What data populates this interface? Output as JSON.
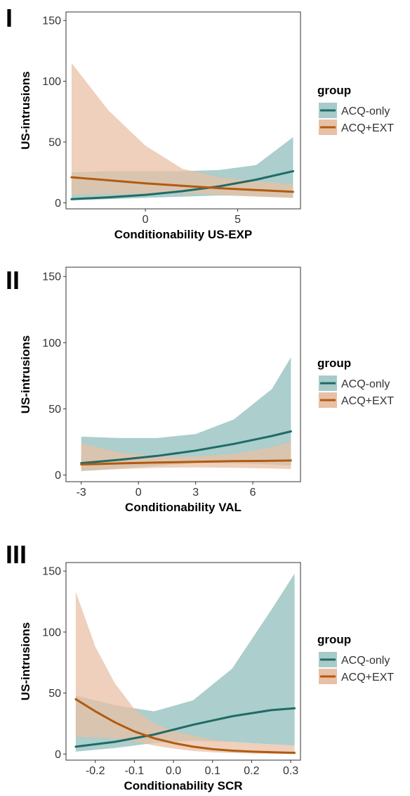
{
  "colors": {
    "acq_only": "#1f6b66",
    "acq_only_band": "#a8cbc9",
    "acq_ext": "#b35a0f",
    "acq_ext_band": "#e8c0a6",
    "text": "#333333",
    "axis": "#333333"
  },
  "chart_data": [
    {
      "panel_label": "I",
      "type": "line",
      "xlabel": "Conditionability US-EXP",
      "ylabel": "US-intrusions",
      "xlim": [
        -4.3,
        8.4
      ],
      "ylim": [
        -5,
        157
      ],
      "xticks": [
        0,
        5
      ],
      "xtick_labels": [
        "0",
        "5"
      ],
      "yticks": [
        0,
        50,
        100,
        150
      ],
      "ytick_labels": [
        "0",
        "50",
        "100",
        "150"
      ],
      "grid": false,
      "legend": {
        "title": "group",
        "placement": "right",
        "entries": [
          "ACQ-only",
          "ACQ+EXT"
        ]
      },
      "series": [
        {
          "name": "ACQ-only",
          "x": [
            -4,
            -2,
            0,
            2,
            4,
            6,
            8
          ],
          "y": [
            3,
            4.5,
            6.5,
            9.5,
            13.5,
            19,
            26
          ],
          "lower": [
            2,
            3,
            4,
            5,
            6,
            5.5,
            4
          ],
          "upper": [
            25,
            26,
            26,
            26,
            27,
            31,
            54
          ]
        },
        {
          "name": "ACQ+EXT",
          "x": [
            -4,
            -2,
            0,
            2,
            4,
            6,
            8
          ],
          "y": [
            21,
            18.5,
            16,
            14,
            12,
            10.5,
            9
          ],
          "lower": [
            6.5,
            7,
            7.5,
            8,
            6.5,
            5,
            4
          ],
          "upper": [
            115,
            76,
            47,
            28,
            21,
            18,
            15
          ]
        }
      ]
    },
    {
      "panel_label": "II",
      "type": "line",
      "xlabel": "Conditionability VAL",
      "ylabel": "US-intrusions",
      "xlim": [
        -3.8,
        8.5
      ],
      "ylim": [
        -5,
        157
      ],
      "xticks": [
        -3,
        0,
        3,
        6
      ],
      "xtick_labels": [
        "-3",
        "0",
        "3",
        "6"
      ],
      "yticks": [
        0,
        50,
        100,
        150
      ],
      "ytick_labels": [
        "0",
        "50",
        "100",
        "150"
      ],
      "grid": false,
      "legend": {
        "title": "group",
        "placement": "right",
        "entries": [
          "ACQ-only",
          "ACQ+EXT"
        ]
      },
      "series": [
        {
          "name": "ACQ-only",
          "x": [
            -3,
            -1,
            1,
            3,
            5,
            7,
            8
          ],
          "y": [
            9,
            11.5,
            14.5,
            18.5,
            23.5,
            29.5,
            33
          ],
          "lower": [
            3,
            5,
            7,
            9,
            9,
            8,
            7
          ],
          "upper": [
            29,
            28,
            28,
            31,
            42,
            65,
            89
          ]
        },
        {
          "name": "ACQ+EXT",
          "x": [
            -3,
            -1,
            1,
            3,
            5,
            7,
            8
          ],
          "y": [
            8,
            8.8,
            9.5,
            10,
            10.5,
            10.8,
            11
          ],
          "lower": [
            3,
            4.5,
            5.5,
            5.8,
            5.5,
            5,
            4.5
          ],
          "upper": [
            24,
            17,
            14,
            14,
            16,
            21,
            25
          ]
        }
      ]
    },
    {
      "panel_label": "III",
      "type": "line",
      "xlabel": "Conditionability SCR",
      "ylabel": "US-intrusions",
      "xlim": [
        -0.275,
        0.325
      ],
      "ylim": [
        -5,
        157
      ],
      "xticks": [
        -0.2,
        -0.1,
        0.0,
        0.1,
        0.2,
        0.3
      ],
      "xtick_labels": [
        "-0.2",
        "-0.1",
        "0.0",
        "0.1",
        "0.2",
        "0.3"
      ],
      "yticks": [
        0,
        50,
        100,
        150
      ],
      "ytick_labels": [
        "0",
        "50",
        "100",
        "150"
      ],
      "grid": false,
      "legend": {
        "title": "group",
        "placement": "right",
        "entries": [
          "ACQ-only",
          "ACQ+EXT"
        ]
      },
      "series": [
        {
          "name": "ACQ-only",
          "x": [
            -0.25,
            -0.15,
            -0.05,
            0.05,
            0.15,
            0.25,
            0.31
          ],
          "y": [
            6,
            10,
            16,
            24,
            31,
            36,
            37.5
          ],
          "lower": [
            2,
            5,
            9,
            11,
            10,
            8,
            7
          ],
          "upper": [
            48,
            40,
            35,
            44,
            70,
            118,
            148
          ]
        },
        {
          "name": "ACQ+EXT",
          "x": [
            -0.25,
            -0.2,
            -0.15,
            -0.1,
            -0.05,
            0.0,
            0.05,
            0.1,
            0.15,
            0.2,
            0.25,
            0.31
          ],
          "y": [
            45,
            35,
            26,
            18.5,
            13,
            9,
            6,
            4,
            2.8,
            2,
            1.5,
            1
          ],
          "lower": [
            14,
            13.5,
            12.5,
            10.5,
            7,
            4.5,
            2.5,
            1.5,
            0.8,
            0.4,
            0.2,
            0.1
          ],
          "upper": [
            133,
            88,
            58,
            37,
            25,
            19,
            15,
            12,
            10,
            9,
            8,
            7
          ]
        }
      ]
    }
  ]
}
